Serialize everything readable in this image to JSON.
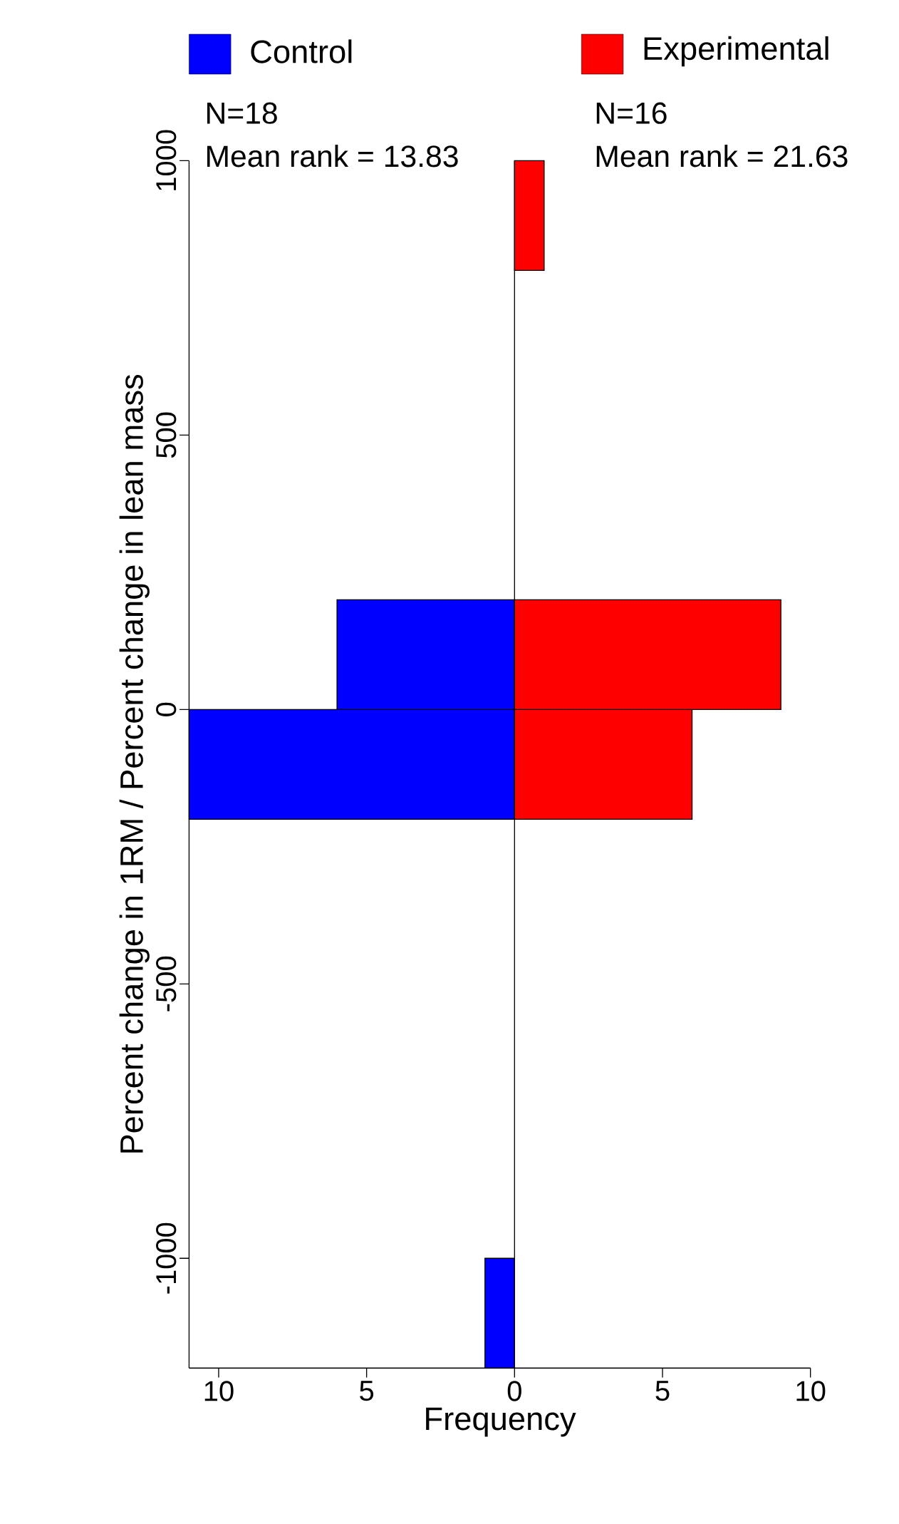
{
  "chart_data": {
    "type": "histogram",
    "orientation": "horizontal",
    "xlabel": "Frequency",
    "ylabel": "Percent change in 1RM / Percent change in lean mass",
    "bins": [
      -1200,
      -1000,
      -800,
      -600,
      -400,
      -200,
      0,
      200,
      400,
      600,
      800,
      1000
    ],
    "series": [
      {
        "name": "Control",
        "color": "#0000ff",
        "values": [
          -1,
          0,
          0,
          0,
          0,
          -11,
          -6,
          0,
          0,
          0,
          0
        ]
      },
      {
        "name": "Experimental",
        "color": "#ff0000",
        "values": [
          0,
          0,
          0,
          0,
          0,
          6,
          9,
          0,
          0,
          0,
          1
        ]
      }
    ],
    "xlim": [
      -11,
      10
    ],
    "ylim": [
      -1200,
      1000
    ],
    "xticks": [
      {
        "value": -10,
        "label": "10"
      },
      {
        "value": -5,
        "label": "5"
      },
      0,
      5,
      10
    ],
    "yticks": [
      -1000,
      -500,
      0,
      500,
      1000
    ],
    "ref_lines": [
      {
        "axis": "x",
        "value": 0
      }
    ],
    "legend": "top",
    "annotations": [
      "N=18",
      "Mean rank = 13.83",
      "N=16",
      "Mean rank = 21.63"
    ]
  }
}
